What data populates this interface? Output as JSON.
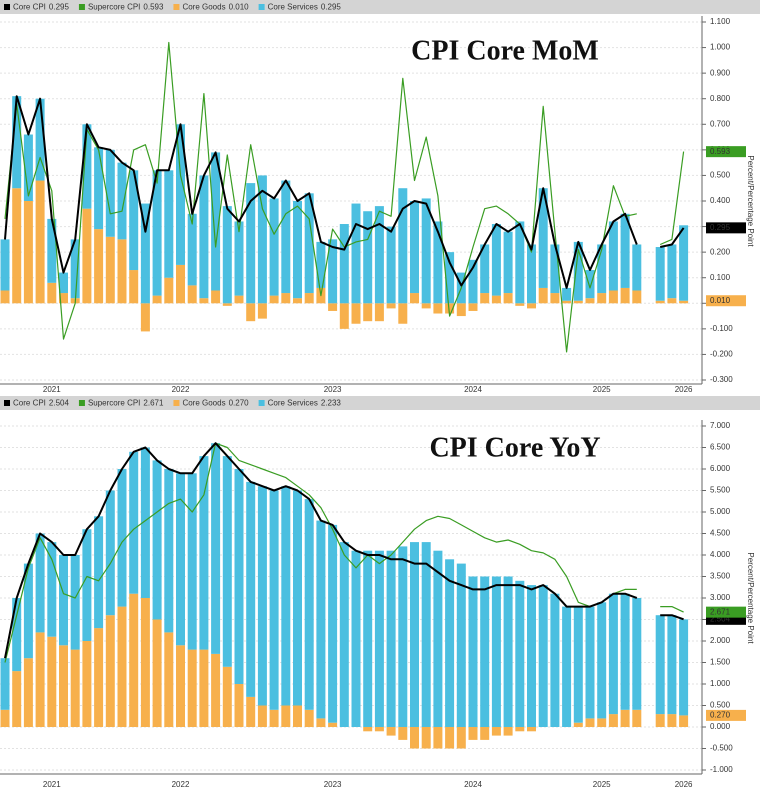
{
  "chart_data": [
    {
      "type": "combo",
      "title": "CPI Core MoM",
      "y_label": "Percent/Percentage Point",
      "grid": true,
      "categories": [
        null,
        null,
        null,
        null,
        "2021",
        null,
        null,
        null,
        null,
        null,
        null,
        null,
        null,
        null,
        null,
        "2022",
        null,
        null,
        null,
        null,
        null,
        null,
        null,
        null,
        null,
        null,
        null,
        null,
        "2023",
        null,
        null,
        null,
        null,
        null,
        null,
        null,
        null,
        null,
        null,
        null,
        "2024",
        null,
        null,
        null,
        null,
        null,
        null,
        null,
        null,
        null,
        null,
        "2025",
        null,
        null,
        null,
        null,
        null,
        null,
        "2026"
      ],
      "ylim": [
        -0.3,
        1.1
      ],
      "yticks": [
        {
          "value": -0.3,
          "label": "-0.300"
        },
        {
          "value": -0.2,
          "label": "-0.200"
        },
        {
          "value": -0.1,
          "label": "-0.100"
        },
        {
          "value": 0,
          "label": "0.000"
        },
        {
          "value": 0.1,
          "label": "0.100"
        },
        {
          "value": 0.2,
          "label": "0.200"
        },
        {
          "value": 0.3,
          "label": "0.300"
        },
        {
          "value": 0.4,
          "label": "0.400"
        },
        {
          "value": 0.5,
          "label": "0.500"
        },
        {
          "value": 0.6,
          "label": "0.600"
        },
        {
          "value": 0.7,
          "label": "0.700"
        },
        {
          "value": 0.8,
          "label": "0.800"
        },
        {
          "value": 0.9,
          "label": "0.900"
        },
        {
          "value": 1.0,
          "label": "1.000"
        },
        {
          "value": 1.1,
          "label": "1.100"
        }
      ],
      "series": [
        {
          "name": "Core CPI",
          "color": "#000000",
          "kind": "line",
          "label": "0.295",
          "axis_tag": true,
          "values": [
            0.25,
            0.81,
            0.66,
            0.8,
            0.33,
            0.12,
            0.25,
            0.7,
            0.61,
            0.6,
            0.55,
            0.52,
            0.28,
            0.52,
            0.52,
            0.7,
            0.35,
            0.5,
            0.59,
            0.37,
            0.32,
            0.4,
            0.44,
            0.41,
            0.48,
            0.4,
            0.43,
            0.24,
            0.22,
            0.21,
            0.31,
            0.29,
            0.31,
            0.28,
            0.37,
            0.4,
            0.39,
            0.28,
            0.16,
            0.07,
            0.14,
            0.23,
            0.31,
            0.28,
            0.31,
            0.21,
            0.45,
            0.23,
            0.06,
            0.24,
            0.13,
            0.23,
            0.32,
            0.35,
            0.23,
            null,
            0.22,
            0.23,
            0.295
          ]
        },
        {
          "name": "Supercore CPI",
          "color": "#3a9d23",
          "kind": "line",
          "label": "0.593",
          "axis_tag": true,
          "values": [
            0.33,
            0.78,
            0.42,
            0.57,
            0.44,
            -0.14,
            0.0,
            0.68,
            0.6,
            0.35,
            0.36,
            0.6,
            0.62,
            0.47,
            1.02,
            0.5,
            0.31,
            0.82,
            0.22,
            0.58,
            0.28,
            0.62,
            0.37,
            0.27,
            0.35,
            0.38,
            0.33,
            0.03,
            0.29,
            0.22,
            0.24,
            0.25,
            0.36,
            0.34,
            0.88,
            0.48,
            0.65,
            0.42,
            -0.05,
            0.06,
            0.22,
            0.37,
            0.38,
            0.35,
            0.31,
            0.2,
            0.77,
            0.28,
            -0.19,
            0.21,
            0.06,
            0.21,
            0.46,
            0.34,
            0.35,
            null,
            0.23,
            0.25,
            0.593
          ]
        },
        {
          "name": "Core Goods",
          "color": "#f7b04c",
          "kind": "bar",
          "label": "0.010",
          "axis_tag": true,
          "values": [
            0.05,
            0.45,
            0.4,
            0.48,
            0.08,
            0.04,
            0.02,
            0.37,
            0.29,
            0.26,
            0.25,
            0.13,
            -0.11,
            0.03,
            0.1,
            0.15,
            0.07,
            0.02,
            0.05,
            -0.01,
            0.03,
            -0.07,
            -0.06,
            0.03,
            0.04,
            0.02,
            0.04,
            0.06,
            -0.03,
            -0.1,
            -0.08,
            -0.07,
            -0.07,
            -0.02,
            -0.08,
            0.04,
            -0.02,
            -0.04,
            -0.04,
            -0.05,
            -0.03,
            0.04,
            0.03,
            0.04,
            -0.01,
            -0.02,
            0.06,
            0.04,
            0.01,
            0.01,
            0.02,
            0.04,
            0.05,
            0.06,
            0.05,
            null,
            0.01,
            0.02,
            0.01
          ]
        },
        {
          "name": "Core Services",
          "color": "#4bbfe0",
          "kind": "bar",
          "label": "0.295",
          "axis_tag": false,
          "values": [
            0.2,
            0.36,
            0.26,
            0.32,
            0.25,
            0.08,
            0.23,
            0.33,
            0.32,
            0.34,
            0.3,
            0.39,
            0.39,
            0.49,
            0.42,
            0.55,
            0.28,
            0.48,
            0.54,
            0.38,
            0.29,
            0.47,
            0.5,
            0.38,
            0.44,
            0.38,
            0.39,
            0.18,
            0.25,
            0.31,
            0.39,
            0.36,
            0.38,
            0.3,
            0.45,
            0.36,
            0.41,
            0.32,
            0.2,
            0.12,
            0.17,
            0.19,
            0.28,
            0.24,
            0.32,
            0.23,
            0.39,
            0.19,
            0.05,
            0.23,
            0.11,
            0.19,
            0.27,
            0.29,
            0.18,
            null,
            0.21,
            0.21,
            0.295
          ]
        }
      ]
    },
    {
      "type": "combo",
      "title": "CPI Core YoY",
      "y_label": "Percent/Percentage Point",
      "grid": true,
      "categories": [
        null,
        null,
        null,
        null,
        "2021",
        null,
        null,
        null,
        null,
        null,
        null,
        null,
        null,
        null,
        null,
        "2022",
        null,
        null,
        null,
        null,
        null,
        null,
        null,
        null,
        null,
        null,
        null,
        null,
        "2023",
        null,
        null,
        null,
        null,
        null,
        null,
        null,
        null,
        null,
        null,
        null,
        "2024",
        null,
        null,
        null,
        null,
        null,
        null,
        null,
        null,
        null,
        null,
        "2025",
        null,
        null,
        null,
        null,
        null,
        null,
        "2026"
      ],
      "ylim": [
        -1.0,
        7.0
      ],
      "yticks": [
        {
          "value": -1.0,
          "label": "-1.000"
        },
        {
          "value": -0.5,
          "label": "-0.500"
        },
        {
          "value": 0,
          "label": "0.000"
        },
        {
          "value": 0.5,
          "label": "0.500"
        },
        {
          "value": 1.0,
          "label": "1.000"
        },
        {
          "value": 1.5,
          "label": "1.500"
        },
        {
          "value": 2.0,
          "label": "2.000"
        },
        {
          "value": 2.5,
          "label": "2.500"
        },
        {
          "value": 3.0,
          "label": "3.000"
        },
        {
          "value": 3.5,
          "label": "3.500"
        },
        {
          "value": 4.0,
          "label": "4.000"
        },
        {
          "value": 4.5,
          "label": "4.500"
        },
        {
          "value": 5.0,
          "label": "5.000"
        },
        {
          "value": 5.5,
          "label": "5.500"
        },
        {
          "value": 6.0,
          "label": "6.000"
        },
        {
          "value": 6.5,
          "label": "6.500"
        },
        {
          "value": 7.0,
          "label": "7.000"
        }
      ],
      "series": [
        {
          "name": "Core CPI",
          "color": "#000000",
          "kind": "line",
          "label": "2.504",
          "axis_tag": true,
          "values": [
            1.6,
            3.0,
            3.8,
            4.5,
            4.3,
            4.0,
            4.0,
            4.6,
            4.9,
            5.5,
            6.0,
            6.4,
            6.5,
            6.2,
            6.0,
            5.9,
            5.9,
            6.3,
            6.6,
            6.3,
            6.0,
            5.7,
            5.6,
            5.5,
            5.6,
            5.5,
            5.3,
            4.8,
            4.7,
            4.3,
            4.1,
            4.0,
            4.0,
            3.9,
            3.9,
            3.8,
            3.8,
            3.6,
            3.4,
            3.3,
            3.2,
            3.2,
            3.3,
            3.3,
            3.3,
            3.2,
            3.3,
            3.1,
            2.8,
            2.8,
            2.8,
            2.9,
            3.1,
            3.1,
            3.0,
            null,
            2.6,
            2.6,
            2.504
          ]
        },
        {
          "name": "Supercore CPI",
          "color": "#3a9d23",
          "kind": "line",
          "label": "2.671",
          "axis_tag": true,
          "values": [
            1.5,
            2.6,
            3.7,
            4.4,
            3.9,
            3.1,
            3.0,
            3.5,
            3.4,
            3.8,
            4.3,
            4.6,
            4.8,
            5.0,
            5.2,
            5.3,
            5.0,
            5.4,
            6.6,
            6.5,
            6.2,
            6.1,
            6.0,
            5.9,
            5.8,
            5.6,
            5.4,
            5.1,
            4.6,
            4.0,
            3.7,
            4.0,
            3.8,
            4.0,
            4.3,
            4.6,
            4.8,
            4.9,
            4.85,
            4.7,
            4.55,
            4.4,
            4.3,
            4.35,
            4.25,
            4.1,
            4.05,
            3.9,
            3.5,
            2.9,
            2.8,
            2.9,
            3.1,
            3.2,
            3.2,
            null,
            2.8,
            2.8,
            2.671
          ]
        },
        {
          "name": "Core Goods",
          "color": "#f7b04c",
          "kind": "bar",
          "label": "0.270",
          "axis_tag": true,
          "values": [
            0.4,
            1.3,
            1.6,
            2.2,
            2.1,
            1.9,
            1.8,
            2.0,
            2.3,
            2.6,
            2.8,
            3.1,
            3.0,
            2.5,
            2.2,
            1.9,
            1.8,
            1.8,
            1.7,
            1.4,
            1.0,
            0.7,
            0.5,
            0.4,
            0.5,
            0.5,
            0.4,
            0.2,
            0.1,
            0.0,
            0.0,
            -0.1,
            -0.1,
            -0.2,
            -0.3,
            -0.5,
            -0.5,
            -0.5,
            -0.5,
            -0.5,
            -0.3,
            -0.3,
            -0.2,
            -0.2,
            -0.1,
            -0.1,
            0.0,
            0.0,
            0.0,
            0.1,
            0.2,
            0.2,
            0.3,
            0.4,
            0.4,
            null,
            0.3,
            0.3,
            0.27
          ]
        },
        {
          "name": "Core Services",
          "color": "#4bbfe0",
          "kind": "bar",
          "label": "2.233",
          "axis_tag": false,
          "values": [
            1.2,
            1.7,
            2.2,
            2.3,
            2.2,
            2.1,
            2.2,
            2.6,
            2.6,
            2.9,
            3.2,
            3.3,
            3.5,
            3.7,
            3.8,
            4.0,
            4.1,
            4.5,
            4.9,
            4.9,
            5.0,
            5.0,
            5.1,
            5.1,
            5.1,
            5.0,
            4.9,
            4.6,
            4.6,
            4.3,
            4.1,
            4.1,
            4.1,
            4.1,
            4.2,
            4.3,
            4.3,
            4.1,
            3.9,
            3.8,
            3.5,
            3.5,
            3.5,
            3.5,
            3.4,
            3.3,
            3.3,
            3.1,
            2.8,
            2.7,
            2.6,
            2.7,
            2.8,
            2.7,
            2.6,
            null,
            2.3,
            2.3,
            2.233
          ]
        }
      ]
    }
  ]
}
